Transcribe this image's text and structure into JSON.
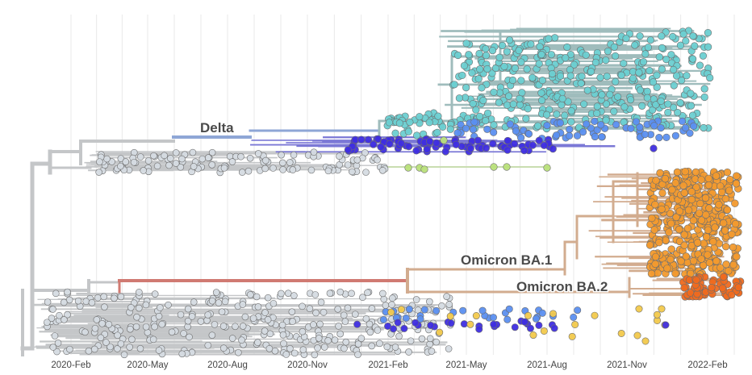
{
  "axis": {
    "ticks": [
      "2020-Feb",
      "2020-May",
      "2020-Aug",
      "2020-Nov",
      "2021-Feb",
      "2021-May",
      "2021-Aug",
      "2021-Nov",
      "2022-Feb"
    ]
  },
  "clades": {
    "delta": "Delta",
    "omicron_ba1": "Omicron BA.1",
    "omicron_ba2": "Omicron BA.2"
  },
  "colors": {
    "background_lineage": "#c4c6c8",
    "grid": "#e9e9e9",
    "delta_tips": "#6ccfd1",
    "delta_branch": "#9fbcbc",
    "delta_stem": "#8ea6d6",
    "ay_blue": "#5b8ff0",
    "deep_purple": "#3f2ee0",
    "lime": "#b9e07a",
    "omicron_stem": "#d07a72",
    "omicron_branch": "#d2ac8f",
    "ba1_tips": "#f29a2e",
    "ba2_tips": "#ef6a1f",
    "yellow_tips": "#f2c94c",
    "grey_tips": "#d5dbe2"
  }
}
